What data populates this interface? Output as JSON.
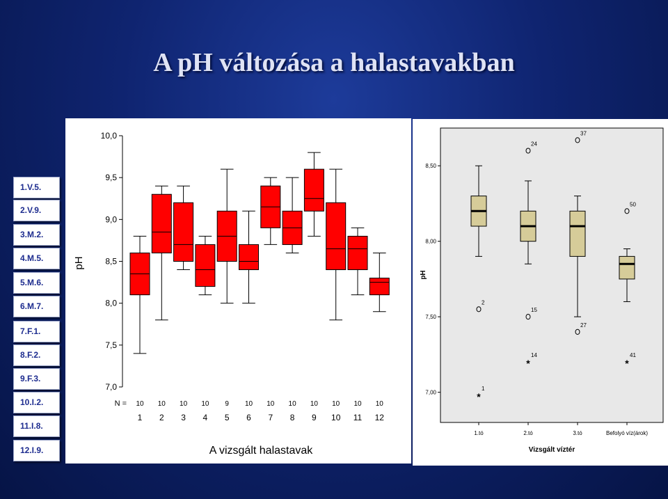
{
  "slide": {
    "title": "A pH változása a halastavakban"
  },
  "legend": {
    "items": [
      "1.V.5.",
      "2.V.9.",
      "3.M.2.",
      "4.M.5.",
      "5.M.6.",
      "6.M.7.",
      "7.F.1.",
      "8.F.2.",
      "9.F.3.",
      "10.I.2.",
      "11.I.8.",
      "12.I.9."
    ]
  },
  "colors": {
    "left_box": "#ff0000",
    "right_box": "#d6cc99",
    "right_plot_bg": "#e8e8e8"
  },
  "chart_data": [
    {
      "type": "boxplot",
      "xlabel": "A vizsgált halastavak",
      "ylabel": "pH",
      "ylim": [
        7.0,
        10.0
      ],
      "yticks": [
        "7,0",
        "7,5",
        "8,0",
        "8,5",
        "9,0",
        "9,5",
        "10,0"
      ],
      "n_label": "N =",
      "categories": [
        "1",
        "2",
        "3",
        "4",
        "5",
        "6",
        "7",
        "8",
        "9",
        "10",
        "11",
        "12"
      ],
      "n": [
        "10",
        "10",
        "10",
        "10",
        "9",
        "10",
        "10",
        "10",
        "10",
        "10",
        "10",
        "10"
      ],
      "boxes": [
        {
          "min": 7.4,
          "q1": 8.1,
          "median": 8.35,
          "q3": 8.6,
          "max": 8.8
        },
        {
          "min": 7.8,
          "q1": 8.6,
          "median": 8.85,
          "q3": 9.3,
          "max": 9.4
        },
        {
          "min": 8.4,
          "q1": 8.5,
          "median": 8.7,
          "q3": 9.2,
          "max": 9.4
        },
        {
          "min": 8.1,
          "q1": 8.2,
          "median": 8.4,
          "q3": 8.7,
          "max": 8.8
        },
        {
          "min": 8.0,
          "q1": 8.5,
          "median": 8.8,
          "q3": 9.1,
          "max": 9.6
        },
        {
          "min": 8.0,
          "q1": 8.4,
          "median": 8.5,
          "q3": 8.7,
          "max": 9.1
        },
        {
          "min": 8.7,
          "q1": 8.9,
          "median": 9.15,
          "q3": 9.4,
          "max": 9.5
        },
        {
          "min": 8.6,
          "q1": 8.7,
          "median": 8.9,
          "q3": 9.1,
          "max": 9.5
        },
        {
          "min": 8.8,
          "q1": 9.1,
          "median": 9.25,
          "q3": 9.6,
          "max": 9.8
        },
        {
          "min": 7.8,
          "q1": 8.4,
          "median": 8.65,
          "q3": 9.2,
          "max": 9.6
        },
        {
          "min": 8.1,
          "q1": 8.4,
          "median": 8.65,
          "q3": 8.8,
          "max": 8.9
        },
        {
          "min": 7.9,
          "q1": 8.1,
          "median": 8.25,
          "q3": 8.3,
          "max": 8.6
        }
      ]
    },
    {
      "type": "boxplot",
      "xlabel": "Vizsgált víztér",
      "ylabel": "pH",
      "ylim": [
        6.8,
        8.75
      ],
      "yticks": [
        "7,00",
        "7,50",
        "8,00",
        "8,50"
      ],
      "categories": [
        "1.tó",
        "2.tó",
        "3.tó",
        "Befolyó víz(árok)"
      ],
      "boxes": [
        {
          "min": 7.9,
          "q1": 8.1,
          "median": 8.2,
          "q3": 8.3,
          "max": 8.5
        },
        {
          "min": 7.85,
          "q1": 8.0,
          "median": 8.1,
          "q3": 8.2,
          "max": 8.4
        },
        {
          "min": 7.5,
          "q1": 7.9,
          "median": 8.1,
          "q3": 8.2,
          "max": 8.3
        },
        {
          "min": 7.6,
          "q1": 7.75,
          "median": 7.85,
          "q3": 7.9,
          "max": 7.95
        }
      ],
      "outliers": [
        {
          "group": 0,
          "value": 7.55,
          "label": "2",
          "marker": "o"
        },
        {
          "group": 0,
          "value": 6.98,
          "label": "1",
          "marker": "*"
        },
        {
          "group": 1,
          "value": 8.6,
          "label": "24",
          "marker": "o"
        },
        {
          "group": 1,
          "value": 7.5,
          "label": "15",
          "marker": "o"
        },
        {
          "group": 1,
          "value": 7.2,
          "label": "14",
          "marker": "*"
        },
        {
          "group": 2,
          "value": 8.67,
          "label": "37",
          "marker": "o"
        },
        {
          "group": 2,
          "value": 7.4,
          "label": "27",
          "marker": "o"
        },
        {
          "group": 3,
          "value": 8.2,
          "label": "50",
          "marker": "o"
        },
        {
          "group": 3,
          "value": 7.2,
          "label": "41",
          "marker": "*"
        }
      ]
    }
  ]
}
